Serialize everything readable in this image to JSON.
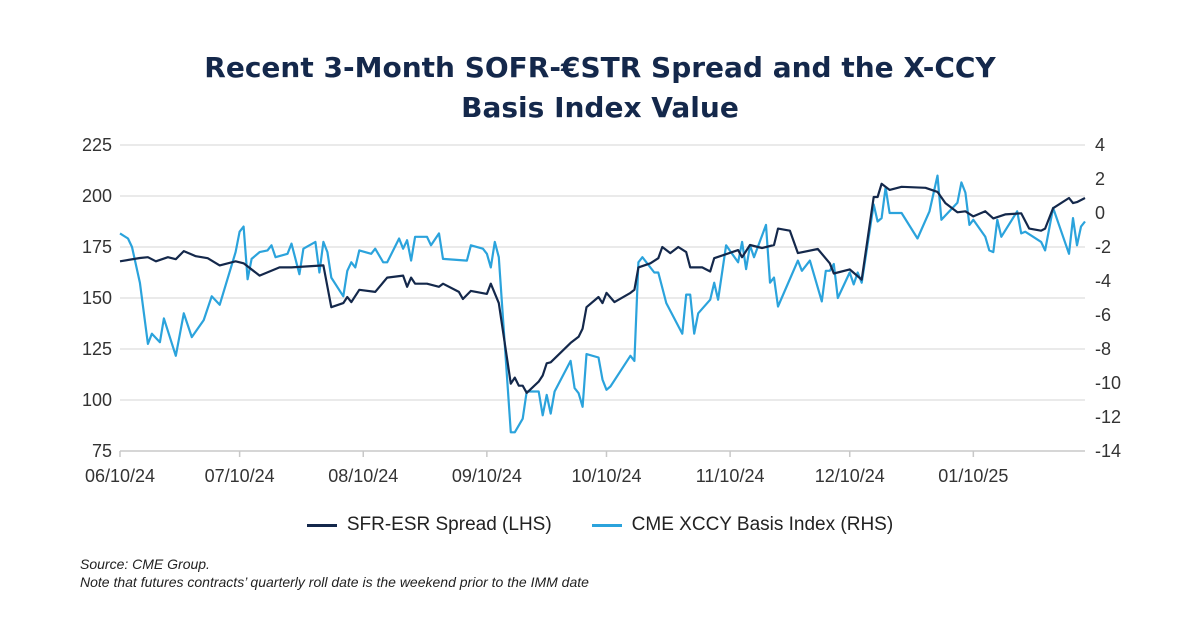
{
  "chart_data": {
    "type": "line",
    "title": [
      "Recent 3-Month SOFR-€STR Spread and the X-CCY",
      "Basis Index Value"
    ],
    "x_type": "date",
    "xlim": [
      "2024-06-10",
      "2025-02-07"
    ],
    "x_ticks": [
      {
        "date": "2024-06-10",
        "label": "06/10/24"
      },
      {
        "date": "2024-07-10",
        "label": "07/10/24"
      },
      {
        "date": "2024-08-10",
        "label": "08/10/24"
      },
      {
        "date": "2024-09-10",
        "label": "09/10/24"
      },
      {
        "date": "2024-10-10",
        "label": "10/10/24"
      },
      {
        "date": "2024-11-10",
        "label": "11/10/24"
      },
      {
        "date": "2024-12-10",
        "label": "12/10/24"
      },
      {
        "date": "2025-01-10",
        "label": "01/10/25"
      }
    ],
    "y_left": {
      "ylim": [
        75,
        225
      ],
      "ticks": [
        "75",
        "100",
        "125",
        "150",
        "175",
        "200",
        "225"
      ]
    },
    "y_right": {
      "ylim": [
        -14,
        4
      ],
      "ticks": [
        "-14",
        "-12",
        "-10",
        "-8",
        "-6",
        "-4",
        "-2",
        "0",
        "2",
        "4"
      ]
    },
    "grid": true,
    "legend_position": "bottom",
    "series": [
      {
        "name": "SFR-ESR Spread (LHS)",
        "axis": "left",
        "color": "#14284b",
        "points": [
          [
            "2024-06-10",
            168
          ],
          [
            "2024-06-15",
            169.6
          ],
          [
            "2024-06-17",
            170
          ],
          [
            "2024-06-19",
            168
          ],
          [
            "2024-06-22",
            170
          ],
          [
            "2024-06-24",
            169
          ],
          [
            "2024-06-26",
            173
          ],
          [
            "2024-06-29",
            170.5
          ],
          [
            "2024-07-02",
            169.5
          ],
          [
            "2024-07-05",
            166
          ],
          [
            "2024-07-09",
            168
          ],
          [
            "2024-07-11",
            167
          ],
          [
            "2024-07-15",
            161
          ],
          [
            "2024-07-20",
            165
          ],
          [
            "2024-07-23",
            165
          ],
          [
            "2024-07-31",
            166
          ],
          [
            "2024-08-02",
            145.5
          ],
          [
            "2024-08-05",
            147.5
          ],
          [
            "2024-08-06",
            150.5
          ],
          [
            "2024-08-07",
            148
          ],
          [
            "2024-08-09",
            154
          ],
          [
            "2024-08-13",
            153
          ],
          [
            "2024-08-16",
            160
          ],
          [
            "2024-08-20",
            161
          ],
          [
            "2024-08-21",
            155.5
          ],
          [
            "2024-08-22",
            160
          ],
          [
            "2024-08-23",
            157
          ],
          [
            "2024-08-26",
            157
          ],
          [
            "2024-08-29",
            155.5
          ],
          [
            "2024-08-30",
            157
          ],
          [
            "2024-09-03",
            153
          ],
          [
            "2024-09-04",
            149.5
          ],
          [
            "2024-09-06",
            153.5
          ],
          [
            "2024-09-10",
            152
          ],
          [
            "2024-09-11",
            157
          ],
          [
            "2024-09-13",
            147.5
          ],
          [
            "2024-09-16",
            108
          ],
          [
            "2024-09-17",
            111
          ],
          [
            "2024-09-18",
            107
          ],
          [
            "2024-09-19",
            107
          ],
          [
            "2024-09-20",
            103.5
          ],
          [
            "2024-09-23",
            109
          ],
          [
            "2024-09-24",
            112
          ],
          [
            "2024-09-25",
            118
          ],
          [
            "2024-09-26",
            118.5
          ],
          [
            "2024-10-01",
            128
          ],
          [
            "2024-10-03",
            131
          ],
          [
            "2024-10-04",
            135
          ],
          [
            "2024-10-05",
            145.5
          ],
          [
            "2024-10-08",
            150.5
          ],
          [
            "2024-10-09",
            147.5
          ],
          [
            "2024-10-10",
            152.5
          ],
          [
            "2024-10-12",
            148
          ],
          [
            "2024-10-16",
            152.5
          ],
          [
            "2024-10-17",
            154
          ],
          [
            "2024-10-18",
            165
          ],
          [
            "2024-10-21",
            167
          ],
          [
            "2024-10-23",
            169.5
          ],
          [
            "2024-10-24",
            175
          ],
          [
            "2024-10-26",
            172
          ],
          [
            "2024-10-28",
            175
          ],
          [
            "2024-10-30",
            172.5
          ],
          [
            "2024-10-31",
            165
          ],
          [
            "2024-11-03",
            165
          ],
          [
            "2024-11-05",
            163
          ],
          [
            "2024-11-06",
            169.5
          ],
          [
            "2024-11-12",
            173.5
          ],
          [
            "2024-11-13",
            170
          ],
          [
            "2024-11-15",
            176
          ],
          [
            "2024-11-18",
            174.5
          ],
          [
            "2024-11-21",
            176
          ],
          [
            "2024-11-22",
            184
          ],
          [
            "2024-11-25",
            183
          ],
          [
            "2024-11-27",
            172
          ],
          [
            "2024-12-02",
            174
          ],
          [
            "2024-12-05",
            167
          ],
          [
            "2024-12-06",
            162
          ],
          [
            "2024-12-10",
            164
          ],
          [
            "2024-12-13",
            159
          ],
          [
            "2024-12-16",
            199.5
          ],
          [
            "2024-12-17",
            199.5
          ],
          [
            "2024-12-18",
            206
          ],
          [
            "2024-12-20",
            203
          ],
          [
            "2024-12-23",
            204.5
          ],
          [
            "2024-12-29",
            204
          ],
          [
            "2025-01-01",
            202
          ],
          [
            "2025-01-03",
            196.5
          ],
          [
            "2025-01-06",
            192
          ],
          [
            "2025-01-08",
            192.5
          ],
          [
            "2025-01-10",
            190
          ],
          [
            "2025-01-13",
            192.5
          ],
          [
            "2025-01-15",
            189
          ],
          [
            "2025-01-18",
            191
          ],
          [
            "2025-01-22",
            191.5
          ],
          [
            "2025-01-24",
            184
          ],
          [
            "2025-01-27",
            183
          ],
          [
            "2025-01-28",
            184
          ],
          [
            "2025-01-30",
            194
          ],
          [
            "2025-02-03",
            199
          ],
          [
            "2025-02-04",
            196.5
          ],
          [
            "2025-02-05",
            197
          ],
          [
            "2025-02-07",
            199
          ]
        ]
      },
      {
        "name": "CME XCCY Basis Index (RHS)",
        "axis": "right",
        "color": "#2ba3dc",
        "points": [
          [
            "2024-06-10",
            -1.2
          ],
          [
            "2024-06-12",
            -1.5
          ],
          [
            "2024-06-13",
            -2
          ],
          [
            "2024-06-15",
            -4.1
          ],
          [
            "2024-06-17",
            -7.7
          ],
          [
            "2024-06-18",
            -7.1
          ],
          [
            "2024-06-20",
            -7.6
          ],
          [
            "2024-06-21",
            -6.2
          ],
          [
            "2024-06-24",
            -8.4
          ],
          [
            "2024-06-26",
            -5.9
          ],
          [
            "2024-06-28",
            -7.3
          ],
          [
            "2024-07-01",
            -6.3
          ],
          [
            "2024-07-03",
            -4.9
          ],
          [
            "2024-07-05",
            -5.4
          ],
          [
            "2024-07-09",
            -2.3
          ],
          [
            "2024-07-10",
            -1.1
          ],
          [
            "2024-07-11",
            -0.8
          ],
          [
            "2024-07-12",
            -3.9
          ],
          [
            "2024-07-13",
            -2.7
          ],
          [
            "2024-07-15",
            -2.3
          ],
          [
            "2024-07-17",
            -2.2
          ],
          [
            "2024-07-18",
            -1.9
          ],
          [
            "2024-07-19",
            -2.6
          ],
          [
            "2024-07-22",
            -2.4
          ],
          [
            "2024-07-23",
            -1.8
          ],
          [
            "2024-07-25",
            -3.6
          ],
          [
            "2024-07-26",
            -2.1
          ],
          [
            "2024-07-29",
            -1.7
          ],
          [
            "2024-07-30",
            -3.5
          ],
          [
            "2024-07-31",
            -1.7
          ],
          [
            "2024-08-01",
            -2.3
          ],
          [
            "2024-08-02",
            -3.8
          ],
          [
            "2024-08-05",
            -4.9
          ],
          [
            "2024-08-06",
            -3.4
          ],
          [
            "2024-08-07",
            -2.9
          ],
          [
            "2024-08-08",
            -3.2
          ],
          [
            "2024-08-09",
            -2.2
          ],
          [
            "2024-08-12",
            -2.4
          ],
          [
            "2024-08-13",
            -2.1
          ],
          [
            "2024-08-15",
            -2.9
          ],
          [
            "2024-08-16",
            -2.9
          ],
          [
            "2024-08-19",
            -1.5
          ],
          [
            "2024-08-20",
            -2.1
          ],
          [
            "2024-08-21",
            -1.6
          ],
          [
            "2024-08-22",
            -2.8
          ],
          [
            "2024-08-23",
            -1.4
          ],
          [
            "2024-08-26",
            -1.4
          ],
          [
            "2024-08-27",
            -1.9
          ],
          [
            "2024-08-29",
            -1.2
          ],
          [
            "2024-08-30",
            -2.7
          ],
          [
            "2024-09-05",
            -2.8
          ],
          [
            "2024-09-06",
            -1.9
          ],
          [
            "2024-09-09",
            -2.1
          ],
          [
            "2024-09-10",
            -2.4
          ],
          [
            "2024-09-11",
            -3.2
          ],
          [
            "2024-09-12",
            -1.7
          ],
          [
            "2024-09-13",
            -2.6
          ],
          [
            "2024-09-16",
            -12.9
          ],
          [
            "2024-09-17",
            -12.9
          ],
          [
            "2024-09-19",
            -12.1
          ],
          [
            "2024-09-20",
            -10.5
          ],
          [
            "2024-09-23",
            -10.5
          ],
          [
            "2024-09-24",
            -11.9
          ],
          [
            "2024-09-25",
            -10.7
          ],
          [
            "2024-09-26",
            -11.8
          ],
          [
            "2024-09-27",
            -10.5
          ],
          [
            "2024-10-01",
            -8.7
          ],
          [
            "2024-10-02",
            -10.3
          ],
          [
            "2024-10-03",
            -10.6
          ],
          [
            "2024-10-04",
            -11.4
          ],
          [
            "2024-10-05",
            -8.3
          ],
          [
            "2024-10-08",
            -8.5
          ],
          [
            "2024-10-09",
            -9.8
          ],
          [
            "2024-10-10",
            -10.4
          ],
          [
            "2024-10-11",
            -10.2
          ],
          [
            "2024-10-16",
            -8.4
          ],
          [
            "2024-10-17",
            -8.7
          ],
          [
            "2024-10-18",
            -2.9
          ],
          [
            "2024-10-19",
            -2.6
          ],
          [
            "2024-10-22",
            -3.5
          ],
          [
            "2024-10-23",
            -3.5
          ],
          [
            "2024-10-25",
            -5.3
          ],
          [
            "2024-10-29",
            -7.1
          ],
          [
            "2024-10-30",
            -4.8
          ],
          [
            "2024-10-31",
            -4.8
          ],
          [
            "2024-11-01",
            -7.1
          ],
          [
            "2024-11-02",
            -5.9
          ],
          [
            "2024-11-05",
            -5.1
          ],
          [
            "2024-11-06",
            -4.1
          ],
          [
            "2024-11-07",
            -5.1
          ],
          [
            "2024-11-09",
            -1.9
          ],
          [
            "2024-11-12",
            -2.9
          ],
          [
            "2024-11-13",
            -1.7
          ],
          [
            "2024-11-14",
            -3.3
          ],
          [
            "2024-11-15",
            -1.9
          ],
          [
            "2024-11-16",
            -2.6
          ],
          [
            "2024-11-19",
            -0.7
          ],
          [
            "2024-11-20",
            -4.1
          ],
          [
            "2024-11-21",
            -3.8
          ],
          [
            "2024-11-22",
            -5.5
          ],
          [
            "2024-11-27",
            -2.8
          ],
          [
            "2024-11-28",
            -3.4
          ],
          [
            "2024-11-30",
            -2.8
          ],
          [
            "2024-12-03",
            -5.2
          ],
          [
            "2024-12-04",
            -3.4
          ],
          [
            "2024-12-05",
            -3.4
          ],
          [
            "2024-12-06",
            -3
          ],
          [
            "2024-12-07",
            -5
          ],
          [
            "2024-12-10",
            -3.5
          ],
          [
            "2024-12-11",
            -4.2
          ],
          [
            "2024-12-12",
            -3.5
          ],
          [
            "2024-12-13",
            -4.1
          ],
          [
            "2024-12-16",
            0.5
          ],
          [
            "2024-12-17",
            -0.5
          ],
          [
            "2024-12-18",
            -0.3
          ],
          [
            "2024-12-19",
            1.5
          ],
          [
            "2024-12-20",
            0
          ],
          [
            "2024-12-23",
            0
          ],
          [
            "2024-12-27",
            -1.5
          ],
          [
            "2024-12-30",
            0.1
          ],
          [
            "2025-01-01",
            2.2
          ],
          [
            "2025-01-02",
            -0.4
          ],
          [
            "2025-01-06",
            0.6
          ],
          [
            "2025-01-07",
            1.8
          ],
          [
            "2025-01-08",
            1.2
          ],
          [
            "2025-01-09",
            -0.7
          ],
          [
            "2025-01-10",
            -0.4
          ],
          [
            "2025-01-13",
            -1.4
          ],
          [
            "2025-01-14",
            -2.2
          ],
          [
            "2025-01-15",
            -2.3
          ],
          [
            "2025-01-16",
            -0.4
          ],
          [
            "2025-01-17",
            -1.4
          ],
          [
            "2025-01-21",
            0.1
          ],
          [
            "2025-01-22",
            -1.2
          ],
          [
            "2025-01-23",
            -1.1
          ],
          [
            "2025-01-25",
            -1.4
          ],
          [
            "2025-01-27",
            -1.7
          ],
          [
            "2025-01-28",
            -2.2
          ],
          [
            "2025-01-30",
            0.3
          ],
          [
            "2025-02-03",
            -2.4
          ],
          [
            "2025-02-04",
            -0.3
          ],
          [
            "2025-02-05",
            -1.9
          ],
          [
            "2025-02-06",
            -0.8
          ],
          [
            "2025-02-07",
            -0.5
          ]
        ]
      }
    ],
    "notes": [
      "Source: CME Group.",
      "Note that futures contracts’ quarterly roll date is the weekend prior to the IMM date"
    ]
  }
}
